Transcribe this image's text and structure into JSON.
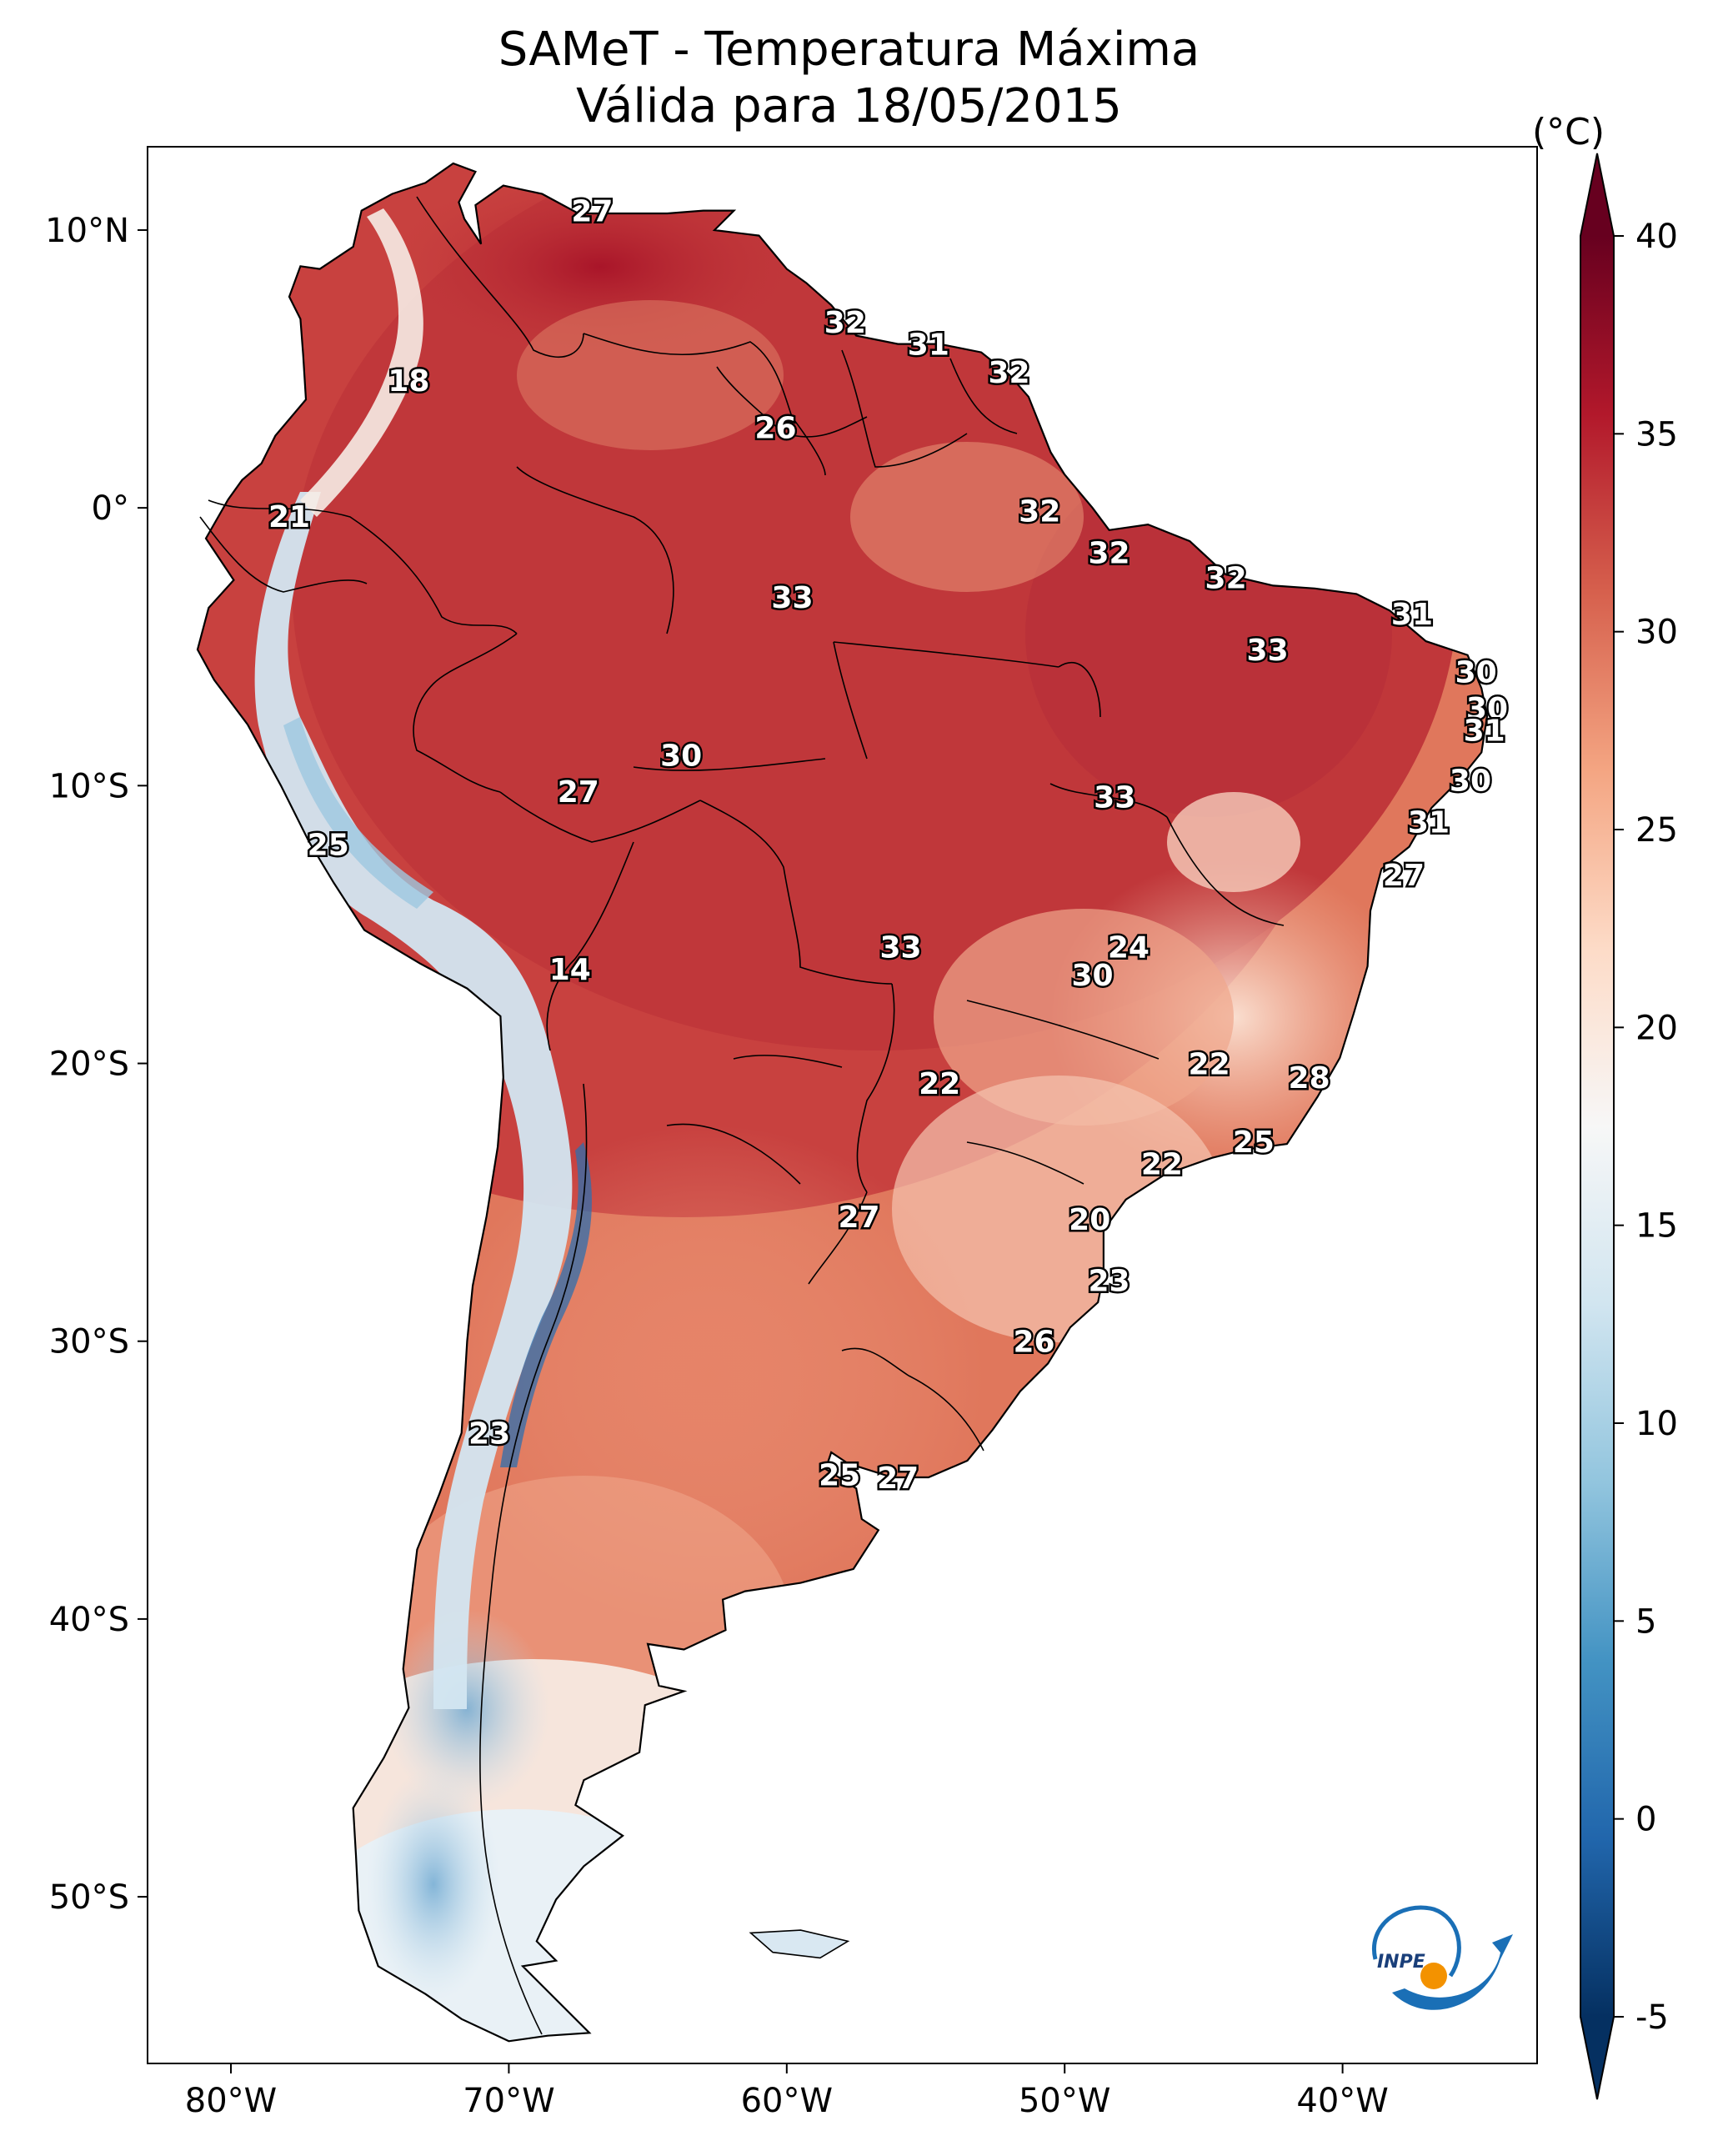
{
  "title": "SAMeT - Temperatura Máxima",
  "subtitle": "Válida para 18/05/2015",
  "colorbar": {
    "unit_label": "(°C)",
    "ticks": [
      "40",
      "35",
      "30",
      "25",
      "20",
      "15",
      "10",
      "5",
      "0",
      "-5"
    ],
    "range": [
      -5,
      40
    ],
    "colors": [
      "#053061",
      "#2166ac",
      "#4393c3",
      "#92c5de",
      "#d1e5f0",
      "#f7f7f7",
      "#fddbc7",
      "#f4a582",
      "#d6604d",
      "#b2182b",
      "#67001f"
    ]
  },
  "axes": {
    "lat_labels": [
      "10°N",
      "0°",
      "10°S",
      "20°S",
      "30°S",
      "40°S",
      "50°S"
    ],
    "lon_labels": [
      "80°W",
      "70°W",
      "60°W",
      "50°W",
      "40°W"
    ]
  },
  "labels": [
    {
      "text": "27",
      "lon": -67.0,
      "lat": 10.7
    },
    {
      "text": "18",
      "lon": -73.6,
      "lat": 4.6
    },
    {
      "text": "32",
      "lon": -57.9,
      "lat": 6.7
    },
    {
      "text": "31",
      "lon": -54.9,
      "lat": 5.9
    },
    {
      "text": "32",
      "lon": -52.0,
      "lat": 4.9
    },
    {
      "text": "26",
      "lon": -60.4,
      "lat": 2.9
    },
    {
      "text": "21",
      "lon": -77.9,
      "lat": -0.3
    },
    {
      "text": "32",
      "lon": -50.9,
      "lat": -0.1
    },
    {
      "text": "32",
      "lon": -48.4,
      "lat": -1.6
    },
    {
      "text": "33",
      "lon": -59.8,
      "lat": -3.2
    },
    {
      "text": "32",
      "lon": -44.2,
      "lat": -2.5
    },
    {
      "text": "31",
      "lon": -37.5,
      "lat": -3.8
    },
    {
      "text": "33",
      "lon": -42.7,
      "lat": -5.1
    },
    {
      "text": "30",
      "lon": -35.2,
      "lat": -5.9
    },
    {
      "text": "30",
      "lon": -34.8,
      "lat": -7.2
    },
    {
      "text": "31",
      "lon": -34.9,
      "lat": -8.0
    },
    {
      "text": "30",
      "lon": -63.8,
      "lat": -8.9
    },
    {
      "text": "27",
      "lon": -67.5,
      "lat": -10.2
    },
    {
      "text": "33",
      "lon": -48.2,
      "lat": -10.4
    },
    {
      "text": "30",
      "lon": -35.4,
      "lat": -9.8
    },
    {
      "text": "31",
      "lon": -36.9,
      "lat": -11.3
    },
    {
      "text": "25",
      "lon": -76.5,
      "lat": -12.1
    },
    {
      "text": "27",
      "lon": -37.8,
      "lat": -13.2
    },
    {
      "text": "24",
      "lon": -47.7,
      "lat": -15.8
    },
    {
      "text": "30",
      "lon": -49.0,
      "lat": -16.8
    },
    {
      "text": "33",
      "lon": -55.9,
      "lat": -15.8
    },
    {
      "text": "14",
      "lon": -67.8,
      "lat": -16.6
    },
    {
      "text": "22",
      "lon": -44.8,
      "lat": -20.0
    },
    {
      "text": "28",
      "lon": -41.2,
      "lat": -20.5
    },
    {
      "text": "22",
      "lon": -54.5,
      "lat": -20.7
    },
    {
      "text": "25",
      "lon": -43.2,
      "lat": -22.8
    },
    {
      "text": "22",
      "lon": -46.5,
      "lat": -23.6
    },
    {
      "text": "27",
      "lon": -57.4,
      "lat": -25.5
    },
    {
      "text": "20",
      "lon": -49.1,
      "lat": -25.6
    },
    {
      "text": "23",
      "lon": -48.4,
      "lat": -27.8
    },
    {
      "text": "26",
      "lon": -51.1,
      "lat": -30.0
    },
    {
      "text": "23",
      "lon": -70.7,
      "lat": -33.3
    },
    {
      "text": "25",
      "lon": -58.1,
      "lat": -34.8
    },
    {
      "text": "27",
      "lon": -56.0,
      "lat": -34.9
    }
  ],
  "logo_text": "INPE"
}
